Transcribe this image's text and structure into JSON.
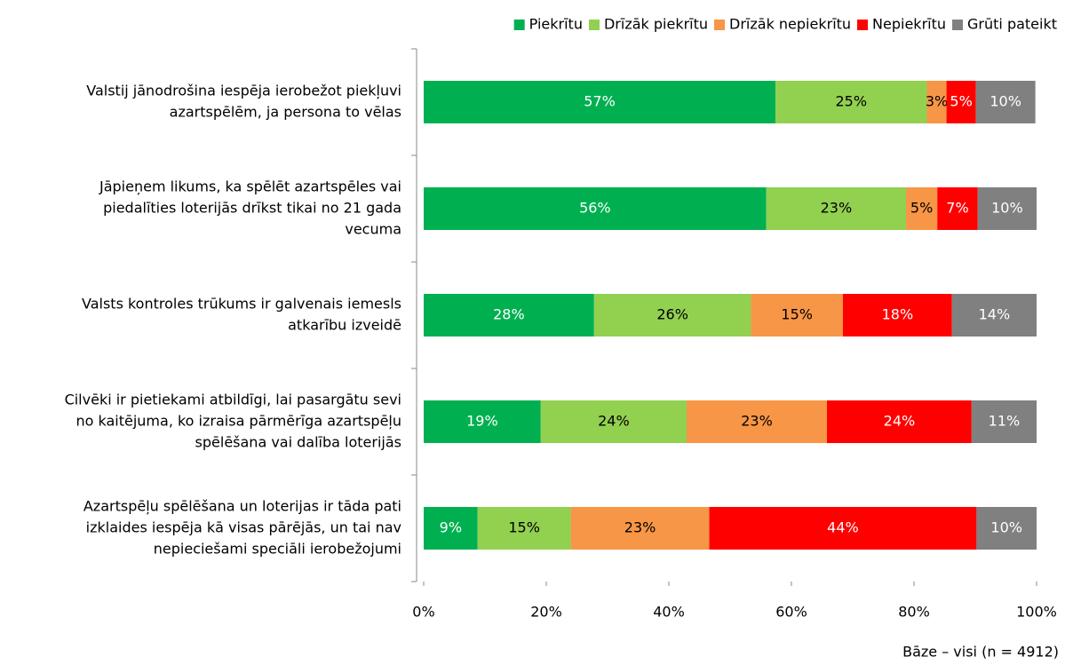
{
  "chart_data": {
    "type": "stacked-bar-horizontal",
    "categories": [
      [
        "Valstij jānodrošina iespēja ierobežot piekļuvi",
        "azartspēlēm, ja persona to vēlas"
      ],
      [
        "Jāpieņem likums, ka spēlēt azartspēles vai",
        "piedalīties loterijās drīkst tikai no 21 gada",
        "vecuma"
      ],
      [
        "Valsts kontroles trūkums ir galvenais iemesls",
        "atkarību izveidē"
      ],
      [
        "Cilvēki ir pietiekami atbildīgi, lai pasargātu sevi",
        "no kaitējuma, ko izraisa pārmērīga azartspēļu",
        "spēlēšana vai dalība loterijās"
      ],
      [
        "Azartspēļu spēlēšana un loterijas ir tāda pati",
        "izklaides iespēja kā visas pārējās, un tai nav",
        "nepieciešami speciāli ierobežojumi"
      ]
    ],
    "series": [
      {
        "name": "Piekrītu",
        "color": "#00b050",
        "label_color": "#ffffff",
        "values": [
          57.4,
          55.9,
          27.8,
          19.1,
          8.8
        ],
        "value_labels": [
          "57%",
          "56%",
          "28%",
          "19%",
          "9%"
        ]
      },
      {
        "name": "Drīzāk piekrītu",
        "color": "#92d050",
        "label_color": "#000000",
        "values": [
          24.7,
          22.8,
          25.6,
          23.8,
          15.2
        ],
        "value_labels": [
          "25%",
          "23%",
          "26%",
          "24%",
          "15%"
        ]
      },
      {
        "name": "Drīzāk nepiekrītu",
        "color": "#f79646",
        "label_color": "#000000",
        "values": [
          3.2,
          5.1,
          15.0,
          22.9,
          22.6
        ],
        "value_labels": [
          "3%",
          "5%",
          "15%",
          "23%",
          "23%"
        ]
      },
      {
        "name": "Nepiekrītu",
        "color": "#ff0000",
        "label_color": "#ffffff",
        "values": [
          4.8,
          6.6,
          17.8,
          23.6,
          43.6
        ],
        "value_labels": [
          "5%",
          "7%",
          "18%",
          "24%",
          "44%"
        ]
      },
      {
        "name": "Grūti pateikt",
        "color": "#808080",
        "label_color": "#ffffff",
        "values": [
          9.7,
          9.6,
          13.8,
          10.6,
          9.8
        ],
        "value_labels": [
          "10%",
          "10%",
          "14%",
          "11%",
          "10%"
        ]
      }
    ],
    "xlim": [
      0,
      100
    ],
    "xticks": [
      {
        "value": 0,
        "label": "0%"
      },
      {
        "value": 20,
        "label": "20%"
      },
      {
        "value": 40,
        "label": "40%"
      },
      {
        "value": 60,
        "label": "60%"
      },
      {
        "value": 80,
        "label": "80%"
      },
      {
        "value": 100,
        "label": "100%"
      }
    ],
    "legend": "top-right",
    "note": "Bāze – visi (n = 4912)"
  }
}
